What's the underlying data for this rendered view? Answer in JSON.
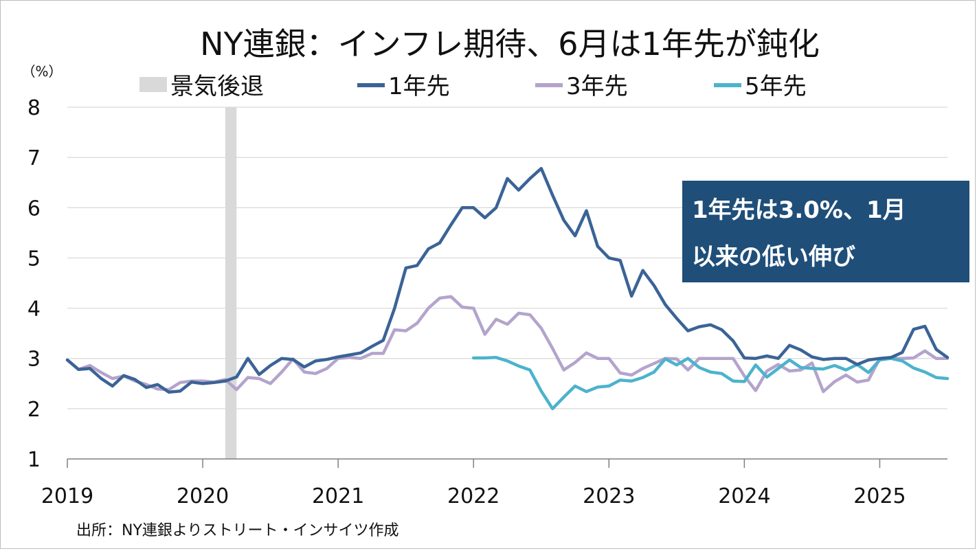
{
  "chart_data": {
    "type": "line",
    "title": "NY連銀：インフレ期待、6月は1年先が鈍化",
    "y_unit_label": "（%）",
    "ylim": [
      1,
      8
    ],
    "y_ticks": [
      "1",
      "2",
      "3",
      "4",
      "5",
      "6",
      "7",
      "8"
    ],
    "xlim": [
      "2019-01",
      "2025-07"
    ],
    "x_ticks": [
      {
        "label": "2019",
        "date": "2019-01"
      },
      {
        "label": "2020",
        "date": "2020-01"
      },
      {
        "label": "2021",
        "date": "2021-01"
      },
      {
        "label": "2022",
        "date": "2022-01"
      },
      {
        "label": "2023",
        "date": "2023-01"
      },
      {
        "label": "2024",
        "date": "2024-01"
      },
      {
        "label": "2025",
        "date": "2025-01"
      }
    ],
    "grid": "horizontal",
    "legend_position": "top",
    "legend": [
      {
        "label": "景気後退",
        "kind": "band",
        "color": "#d9d9d9"
      },
      {
        "label": "1年先",
        "kind": "line",
        "color": "#3b6396"
      },
      {
        "label": "3年先",
        "kind": "line",
        "color": "#b4a4cc"
      },
      {
        "label": "5年先",
        "kind": "line",
        "color": "#4cb3cc"
      }
    ],
    "recession": {
      "start": "2020-03",
      "end": "2020-04",
      "color": "#d9d9d9"
    },
    "series": [
      {
        "name": "1年先",
        "color": "#3b6396",
        "start": "2019-01",
        "values": [
          2.97,
          2.78,
          2.8,
          2.6,
          2.45,
          2.66,
          2.58,
          2.42,
          2.48,
          2.33,
          2.35,
          2.53,
          2.5,
          2.52,
          2.55,
          2.63,
          3.0,
          2.68,
          2.86,
          3.0,
          2.98,
          2.83,
          2.95,
          2.98,
          3.03,
          3.07,
          3.11,
          3.24,
          3.36,
          4.0,
          4.8,
          4.85,
          5.18,
          5.3,
          5.66,
          6.0,
          6.0,
          5.8,
          6.0,
          6.58,
          6.35,
          6.58,
          6.78,
          6.25,
          5.75,
          5.44,
          5.94,
          5.23,
          5.0,
          4.95,
          4.24,
          4.75,
          4.45,
          4.07,
          3.8,
          3.55,
          3.63,
          3.67,
          3.57,
          3.35,
          3.01,
          3.0,
          3.05,
          3.0,
          3.26,
          3.17,
          3.03,
          2.98,
          3.0,
          3.0,
          2.88,
          2.97,
          3.0,
          3.02,
          3.12,
          3.58,
          3.64,
          3.18,
          3.02
        ]
      },
      {
        "name": "3年先",
        "color": "#b4a4cc",
        "start": "2019-01",
        "values": [
          2.97,
          2.78,
          2.86,
          2.72,
          2.6,
          2.65,
          2.55,
          2.48,
          2.39,
          2.38,
          2.52,
          2.55,
          2.55,
          2.53,
          2.58,
          2.38,
          2.62,
          2.6,
          2.5,
          2.73,
          2.99,
          2.73,
          2.7,
          2.8,
          3.0,
          3.02,
          3.0,
          3.1,
          3.1,
          3.57,
          3.55,
          3.7,
          4.0,
          4.2,
          4.23,
          4.02,
          4.0,
          3.48,
          3.78,
          3.68,
          3.9,
          3.87,
          3.6,
          3.2,
          2.77,
          2.92,
          3.11,
          3.0,
          3.0,
          2.71,
          2.67,
          2.8,
          2.9,
          3.0,
          2.99,
          2.77,
          3.0,
          3.0,
          3.0,
          3.0,
          2.65,
          2.36,
          2.75,
          2.88,
          2.75,
          2.77,
          2.91,
          2.34,
          2.54,
          2.67,
          2.53,
          2.57,
          3.0,
          3.0,
          3.0,
          3.01,
          3.15,
          3.0,
          3.0
        ]
      },
      {
        "name": "5年先",
        "color": "#4cb3cc",
        "start": "2022-01",
        "values": [
          3.01,
          3.01,
          3.02,
          2.95,
          2.85,
          2.77,
          2.35,
          2.0,
          2.23,
          2.45,
          2.34,
          2.43,
          2.45,
          2.57,
          2.55,
          2.62,
          2.73,
          2.99,
          2.87,
          3.0,
          2.82,
          2.73,
          2.7,
          2.55,
          2.54,
          2.87,
          2.63,
          2.8,
          2.97,
          2.82,
          2.8,
          2.79,
          2.86,
          2.77,
          2.88,
          2.72,
          2.97,
          3.0,
          2.95,
          2.81,
          2.73,
          2.62,
          2.6
        ]
      }
    ]
  },
  "callout": {
    "line1": "1年先は3.0%、1月",
    "line2": "以来の低い伸び",
    "bg_color": "#1f4e79"
  },
  "source": "出所：NY連銀よりストリート・インサイツ作成"
}
